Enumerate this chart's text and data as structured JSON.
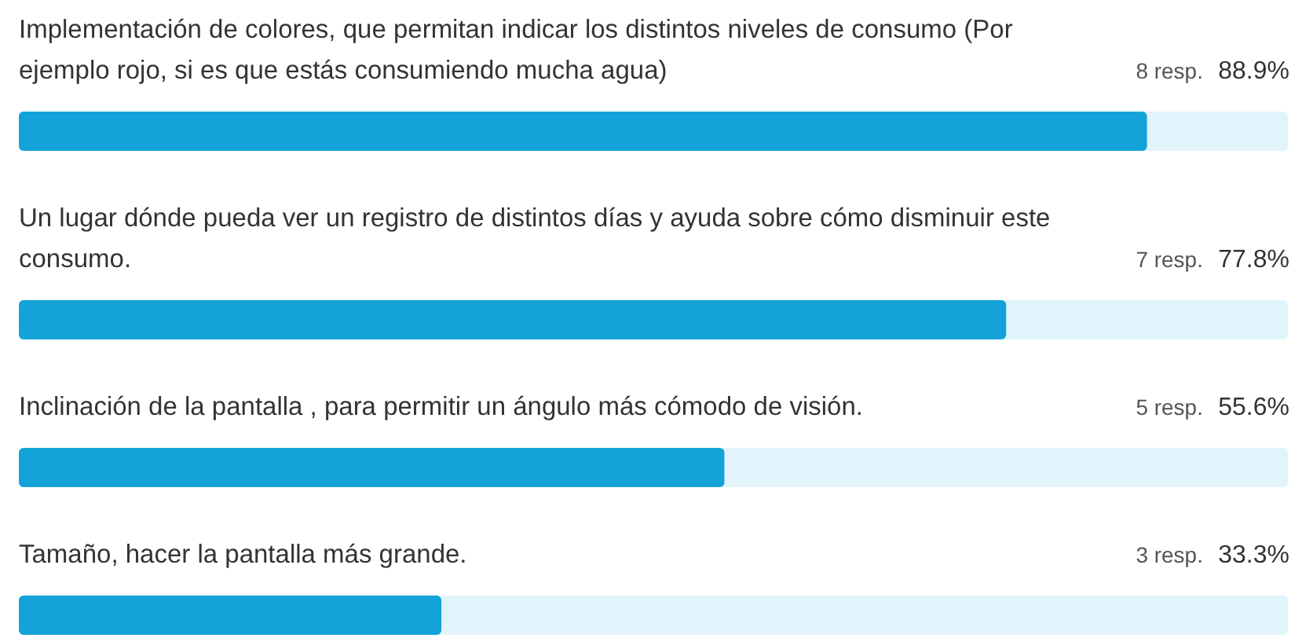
{
  "chart_data": {
    "type": "bar",
    "orientation": "horizontal",
    "categories": [
      "Implementación de colores, que permitan indicar los distintos niveles de consumo (Por ejemplo rojo, si es que estás consumiendo mucha agua)",
      "Un lugar dónde pueda ver un registro de distintos días y ayuda sobre cómo disminuir este consumo.",
      "Inclinación de la pantalla , para permitir un ángulo más cómodo de visión.",
      "Tamaño, hacer la pantalla más grande."
    ],
    "values": [
      88.9,
      77.8,
      55.6,
      33.3
    ],
    "value_labels": [
      "88.9%",
      "77.8%",
      "55.6%",
      "33.3%"
    ],
    "color": "#14a3d8",
    "xlim": [
      0,
      100
    ],
    "annotations": [
      "8 resp.",
      "7 resp.",
      "5 resp.",
      "3 resp."
    ]
  }
}
